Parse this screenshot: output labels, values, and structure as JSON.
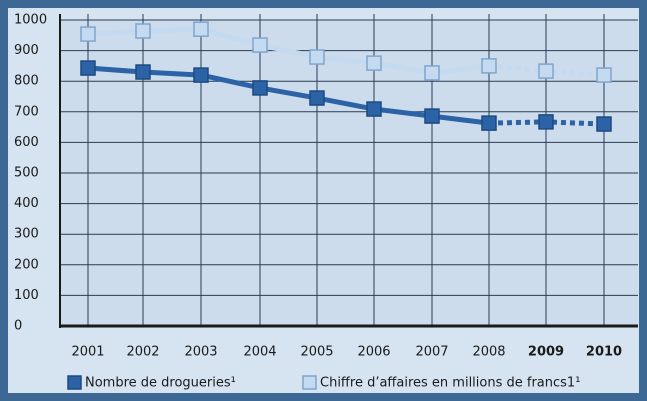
{
  "chart_data": {
    "type": "line",
    "categories": [
      "2001",
      "2002",
      "2003",
      "2004",
      "2005",
      "2006",
      "2007",
      "2008",
      "2009",
      "2010"
    ],
    "series": [
      {
        "name": "Nombre de drogueries¹",
        "color": "#2c63a6",
        "stroke": "#1d4a80",
        "values": [
          843,
          830,
          820,
          778,
          745,
          709,
          686,
          663,
          667,
          660
        ]
      },
      {
        "name": "Chiffre d’affaires en millions de francs1¹",
        "color": "#c3daf0",
        "stroke": "#7fa5cb",
        "values": [
          954,
          964,
          970,
          918,
          879,
          859,
          827,
          850,
          833,
          820
        ]
      }
    ],
    "dashed_from": "2008",
    "bold_categories": [
      "2009",
      "2010"
    ],
    "ylim": [
      0,
      1000
    ],
    "yticks": [
      0,
      100,
      200,
      300,
      400,
      500,
      600,
      700,
      800,
      900,
      1000
    ],
    "grid": true
  }
}
